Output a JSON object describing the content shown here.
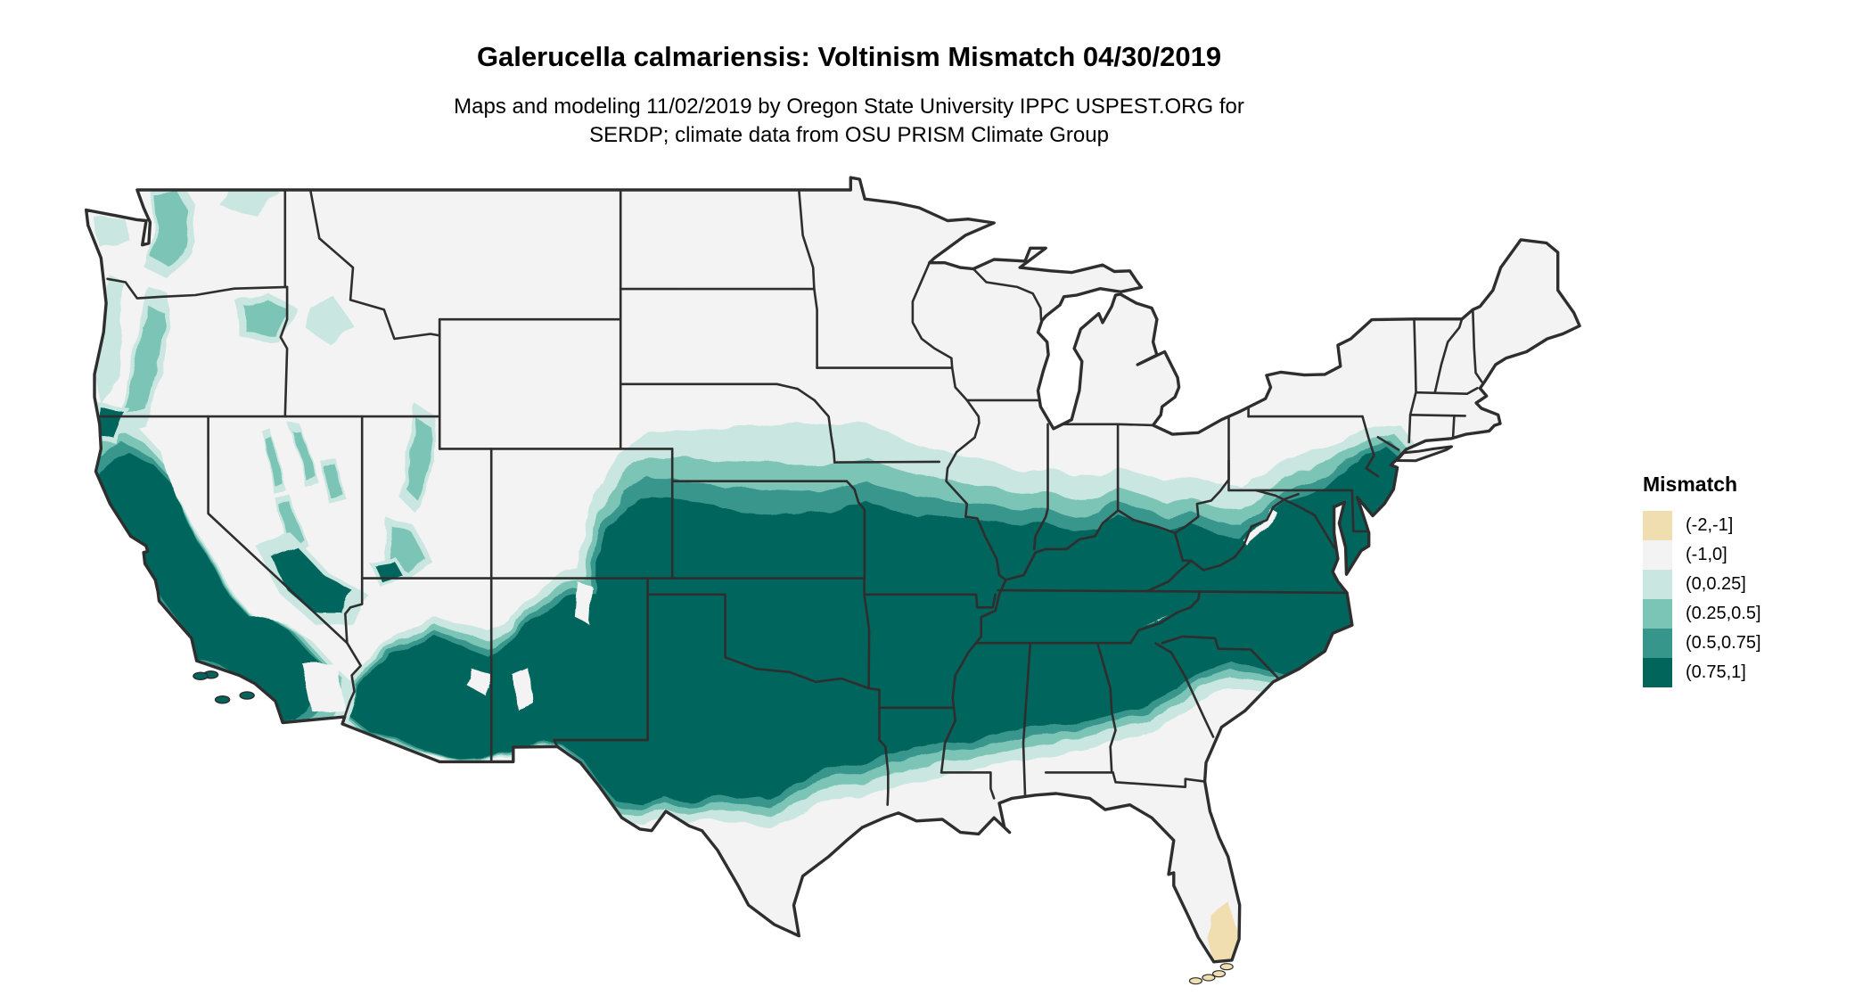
{
  "title": "Galerucella calmariensis: Voltinism Mismatch 04/30/2019",
  "subtitle_line1": "Maps and modeling 11/02/2019 by Oregon State University IPPC USPEST.ORG for",
  "subtitle_line2": "SERDP; climate data from OSU PRISM Climate Group",
  "legend": {
    "title": "Mismatch",
    "items": [
      {
        "label": "(-2,-1]",
        "color": "#F0DEB1"
      },
      {
        "label": "(-1,0]",
        "color": "#F2F3F2"
      },
      {
        "label": "(0,0.25]",
        "color": "#C9E6E0"
      },
      {
        "label": "(0.25,0.5]",
        "color": "#7BC5B6"
      },
      {
        "label": "(0.5,0.75]",
        "color": "#37968C"
      },
      {
        "label": "(0.75,1]",
        "color": "#01655C"
      }
    ]
  },
  "map": {
    "region": "Continental United States",
    "background_color": "#FFFFFF",
    "base_land_color": "#F2F3F2",
    "state_border_color": "#2E2E2E"
  }
}
